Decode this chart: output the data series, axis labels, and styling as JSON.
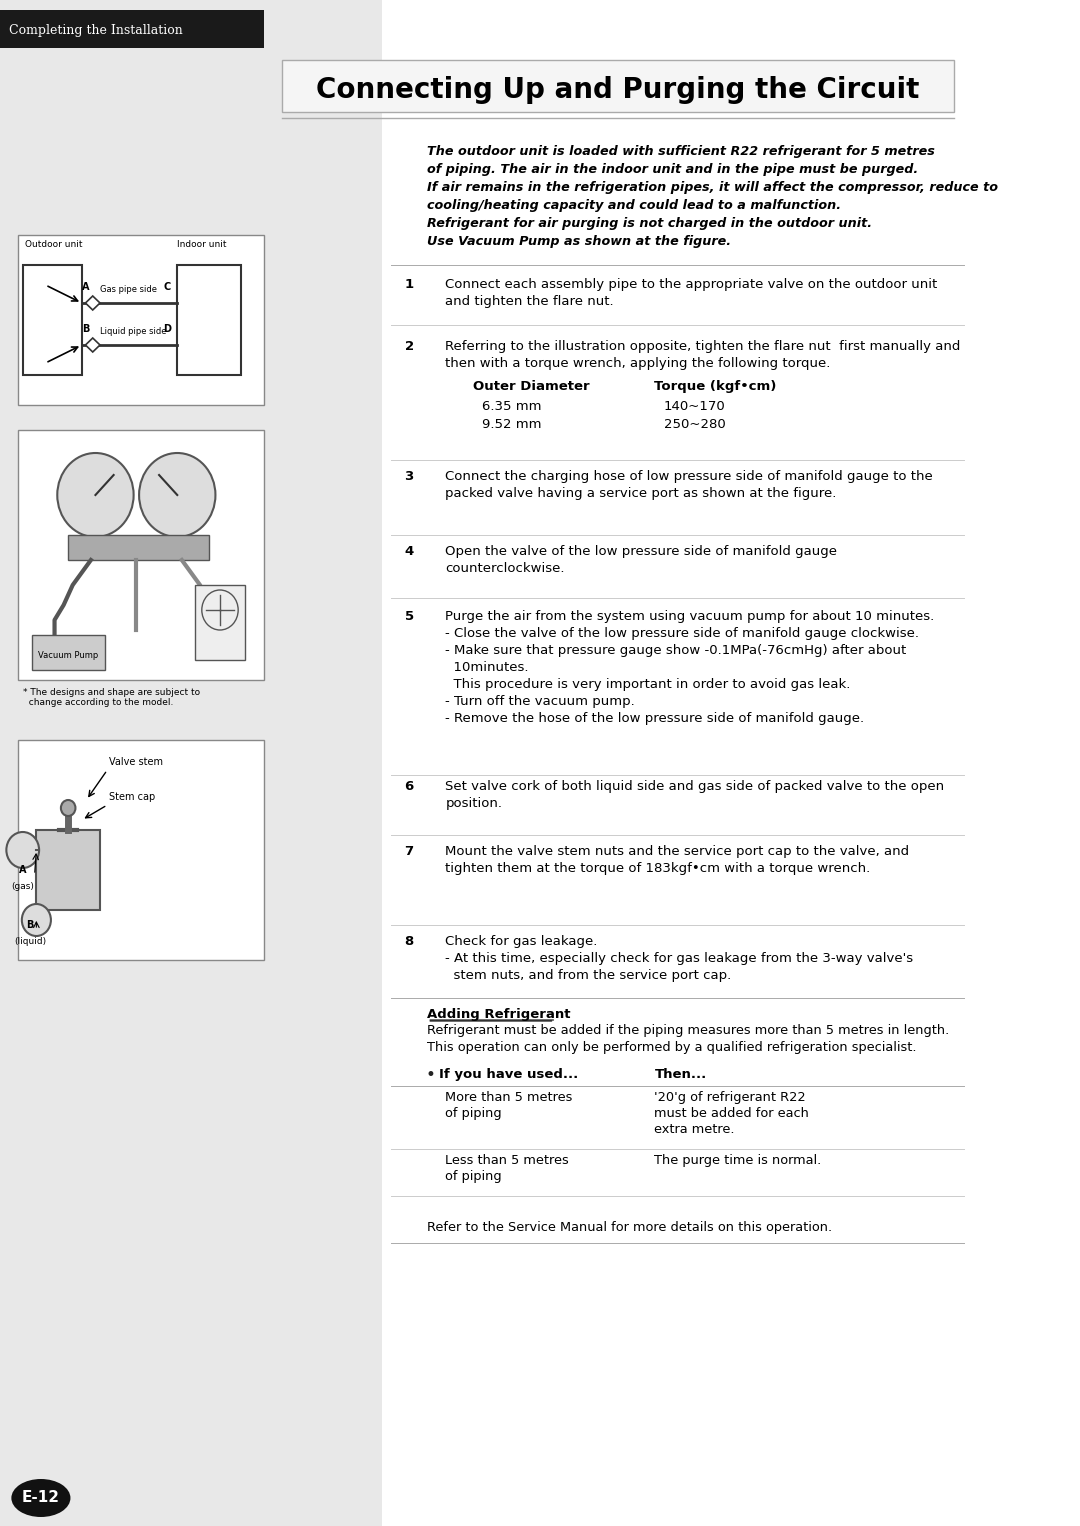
{
  "page_bg": "#ffffff",
  "left_panel_bg": "#e8e8e8",
  "header_bg": "#1a1a1a",
  "header_text": "Completing the Installation",
  "header_text_color": "#ffffff",
  "title": "Connecting Up and Purging the Circuit",
  "title_box_border": "#888888",
  "intro_italic": [
    "The outdoor unit is loaded with sufficient R22 refrigerant for 5 metres",
    "of piping. The air in the indoor unit and in the pipe must be purged.",
    "If air remains in the refrigeration pipes, it will affect the compressor, reduce to",
    "cooling/heating capacity and could lead to a malfunction.",
    "Refrigerant for air purging is not charged in the outdoor unit.",
    "Use Vacuum Pump as shown at the figure."
  ],
  "steps": [
    {
      "num": "1",
      "text": "Connect each assembly pipe to the appropriate valve on the outdoor unit\nand tighten the flare nut."
    },
    {
      "num": "2",
      "text": "Referring to the illustration opposite, tighten the flare nut  first manually and\nthen with a torque wrench, applying the following torque.",
      "table": {
        "col1_header": "Outer Diameter",
        "col2_header": "Torque (kgf•cm)",
        "rows": [
          [
            "6.35 mm",
            "140~170"
          ],
          [
            "9.52 mm",
            "250~280"
          ]
        ]
      }
    },
    {
      "num": "3",
      "text": "Connect the charging hose of low pressure side of manifold gauge to the\npacked valve having a service port as shown at the figure."
    },
    {
      "num": "4",
      "text": "Open the valve of the low pressure side of manifold gauge\ncounterclockwise."
    },
    {
      "num": "5",
      "text": "Purge the air from the system using vacuum pump for about 10 minutes.\n- Close the valve of the low pressure side of manifold gauge clockwise.\n- Make sure that pressure gauge show -0.1MPa(-76cmHg) after about\n  10minutes.\n  This procedure is very important in order to avoid gas leak.\n- Turn off the vacuum pump.\n- Remove the hose of the low pressure side of manifold gauge."
    },
    {
      "num": "6",
      "text": "Set valve cork of both liquid side and gas side of packed valve to the open\nposition."
    },
    {
      "num": "7",
      "text": "Mount the valve stem nuts and the service port cap to the valve, and\ntighten them at the torque of 183kgf•cm with a torque wrench."
    },
    {
      "num": "8",
      "text": "Check for gas leakage.\n- At this time, especially check for gas leakage from the 3-way valve's\n  stem nuts, and from the service port cap."
    }
  ],
  "adding_refrigerant_title": "Adding Refrigerant",
  "adding_refrigerant_text": "Refrigerant must be added if the piping measures more than 5 metres in length.\nThis operation can only be performed by a qualified refrigeration specialist.",
  "ref_table": {
    "col1_header": "If you have used...",
    "col2_header": "Then...",
    "rows": [
      [
        "More than 5 metres\nof piping",
        "'20'g of refrigerant R22\nmust be added for each\nextra metre."
      ],
      [
        "Less than 5 metres\nof piping",
        "The purge time is normal."
      ]
    ]
  },
  "footer_text": "Refer to the Service Manual for more details on this operation.",
  "page_num": "E-12",
  "note_text": "* The designs and shape are subject to\n  change according to the model.",
  "diagram1_labels": {
    "outdoor": "Outdoor unit",
    "indoor": "Indoor unit",
    "A": "A",
    "B": "B",
    "C": "C",
    "D": "D",
    "gas": "Gas pipe side",
    "liquid": "Liquid pipe side"
  },
  "diagram3_labels": {
    "valve_stem": "Valve stem",
    "stem_cap": "Stem cap",
    "A_gas": "A\n(gas)",
    "B_liquid": "B\n(liquid)"
  }
}
